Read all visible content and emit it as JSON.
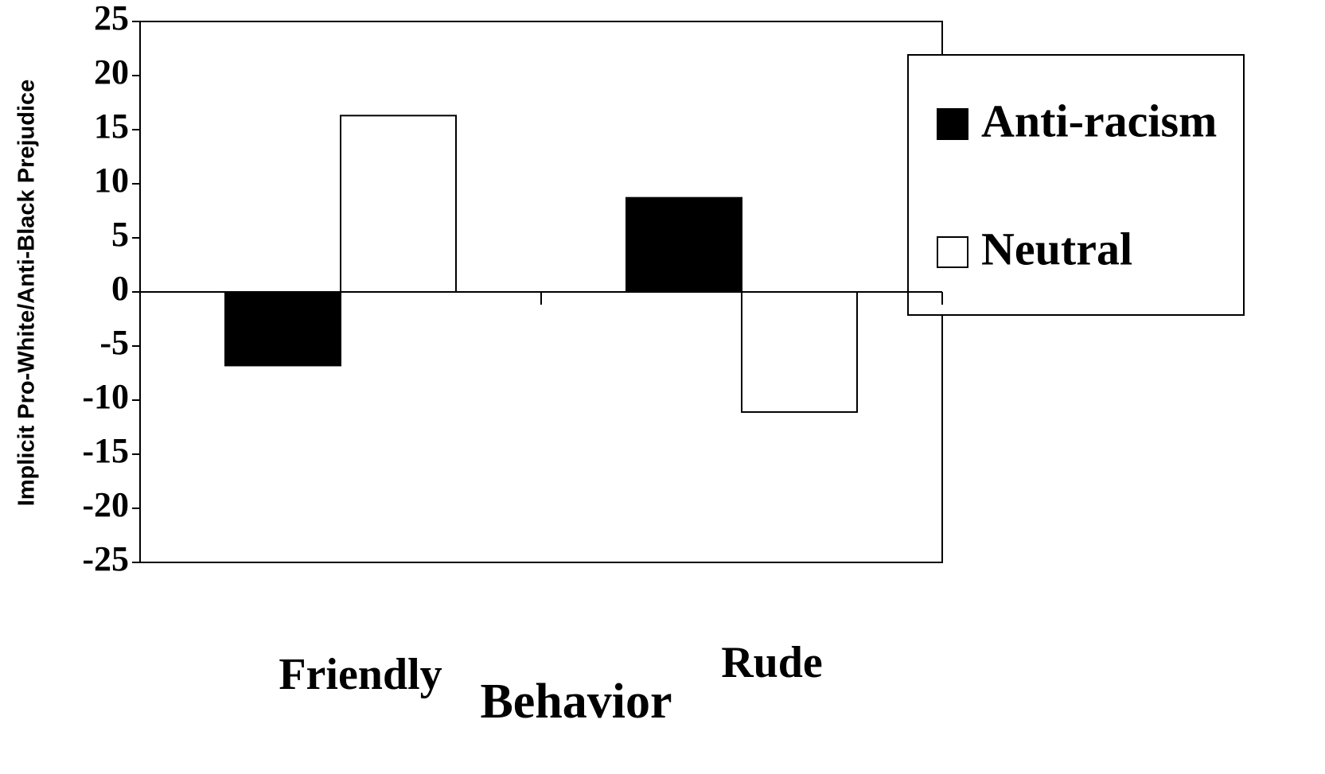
{
  "chart_data": {
    "type": "bar",
    "y_label": "Implicit Pro-White/Anti-Black Prejudice",
    "x_label": "Behavior",
    "categories": [
      "Friendly",
      "Rude"
    ],
    "series": [
      {
        "name": "Anti-racism",
        "color": "#000000",
        "values": [
          -6.8,
          8.7
        ]
      },
      {
        "name": "Neutral",
        "color": "#ffffff",
        "values": [
          16.3,
          -11.1
        ]
      }
    ],
    "ylim": [
      -25,
      25
    ],
    "yticks": [
      -25,
      -20,
      -15,
      -10,
      -5,
      0,
      5,
      10,
      15,
      20,
      25
    ],
    "legend": "right"
  }
}
